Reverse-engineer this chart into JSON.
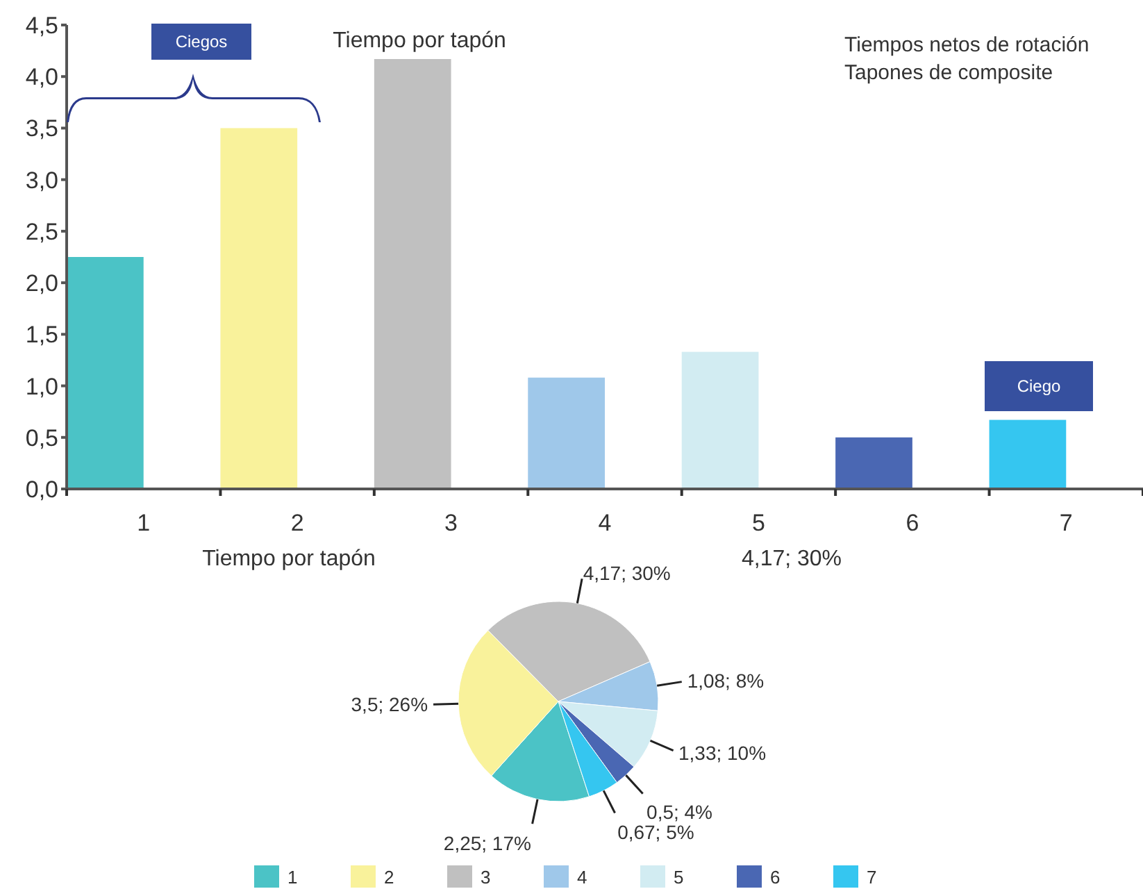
{
  "chart_data": [
    {
      "type": "bar",
      "title": "Tiempo por tapón",
      "subtitle": "Tiempos netos de rotación\nTapones de composite",
      "categories": [
        "1",
        "2",
        "3",
        "4",
        "5",
        "6",
        "7"
      ],
      "values": [
        2.25,
        3.5,
        4.17,
        1.08,
        1.33,
        0.5,
        0.67
      ],
      "colors": [
        "#4bc3c6",
        "#f9f29b",
        "#c0c0c0",
        "#9fc8ea",
        "#d2ecf2",
        "#4a67b3",
        "#35c6f0"
      ],
      "ylim": [
        0,
        4.5
      ],
      "yticks": [
        {
          "value": 0,
          "label": "0,0"
        },
        {
          "value": 0.5,
          "label": "0,5"
        },
        {
          "value": 1,
          "label": "1,0"
        },
        {
          "value": 1.5,
          "label": "1,5"
        },
        {
          "value": 2,
          "label": "2,0"
        },
        {
          "value": 2.5,
          "label": "2,5"
        },
        {
          "value": 3,
          "label": "3,0"
        },
        {
          "value": 3.5,
          "label": "3,5"
        },
        {
          "value": 4,
          "label": "4,0"
        },
        {
          "value": 4.5,
          "label": "4,5"
        }
      ],
      "grid": false,
      "annotations": [
        "Ciegos",
        "Ciego"
      ]
    },
    {
      "type": "pie",
      "title": "Tiempo por tapón",
      "categories": [
        "1",
        "2",
        "3",
        "4",
        "5",
        "6",
        "7"
      ],
      "values": [
        2.25,
        3.5,
        4.17,
        1.08,
        1.33,
        0.5,
        0.67
      ],
      "colors": [
        "#4bc3c6",
        "#f9f29b",
        "#c0c0c0",
        "#9fc8ea",
        "#d2ecf2",
        "#4a67b3",
        "#35c6f0"
      ],
      "value_labels": [
        "2,25; 17%",
        "3,5; 26%",
        "4,17; 30%",
        "1,08; 8%",
        "1,33; 10%",
        "0,5; 4%",
        "0,67; 5%"
      ],
      "legend": "bottom",
      "annotations": [
        "4,17; 30%"
      ]
    }
  ]
}
